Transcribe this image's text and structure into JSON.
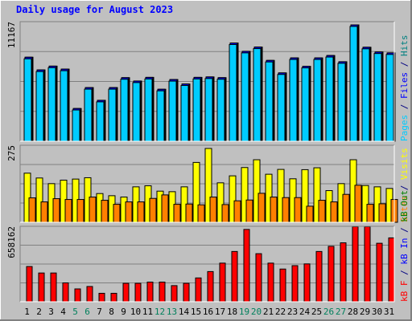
{
  "chart_data": {
    "type": "bar",
    "title": "Daily usage for August 2023",
    "categories": [
      "1",
      "2",
      "3",
      "4",
      "5",
      "6",
      "7",
      "8",
      "9",
      "10",
      "11",
      "12",
      "13",
      "14",
      "15",
      "16",
      "17",
      "18",
      "19",
      "20",
      "21",
      "22",
      "23",
      "24",
      "25",
      "26",
      "27",
      "28",
      "29",
      "30",
      "31"
    ],
    "weekend_days": [
      "5",
      "6",
      "12",
      "13",
      "19",
      "20",
      "26",
      "27"
    ],
    "panels": [
      {
        "name": "hits",
        "ymax": 11167,
        "ymax_label": "11167",
        "legend": [
          {
            "text": "Pages",
            "color": "#00ccff"
          },
          {
            "text": " / ",
            "color": "#000080"
          },
          {
            "text": "Files",
            "color": "#0000ff"
          },
          {
            "text": " / ",
            "color": "#000080"
          },
          {
            "text": "Hits",
            "color": "#008080"
          }
        ],
        "series": [
          {
            "name": "Hits",
            "color": "#00805c",
            "values": [
              8067,
              6847,
              7210,
              6925,
              3144,
              5150,
              3930,
              5150,
              6102,
              5780,
              6131,
              4990,
              5923,
              5496,
              6131,
              6173,
              6102,
              9430,
              8630,
              9039,
              7760,
              6560,
              8000,
              7190,
              8000,
              8230,
              7630,
              11167,
              9022,
              8568,
              8480
            ]
          },
          {
            "name": "Files",
            "color": "#0000ff",
            "values": [
              8067,
              6847,
              7210,
              6925,
              3144,
              5150,
              3930,
              5150,
              6102,
              5780,
              6131,
              4990,
              5923,
              5496,
              6131,
              6173,
              6102,
              9430,
              8630,
              9039,
              7760,
              6560,
              8000,
              7190,
              8000,
              8230,
              7630,
              11167,
              9022,
              8568,
              8480
            ]
          },
          {
            "name": "Pages",
            "color": "#00ccff",
            "values": [
              7910,
              6690,
              7060,
              6770,
              3000,
              5000,
              3780,
              5000,
              5950,
              5630,
              5980,
              4840,
              5770,
              5350,
              5980,
              6020,
              5950,
              9280,
              8480,
              8890,
              7610,
              6410,
              7850,
              7040,
              7850,
              8080,
              7480,
              11020,
              8870,
              8420,
              8330
            ]
          }
        ]
      },
      {
        "name": "visits",
        "ymax": 275,
        "ymax_label": "275",
        "legend": [
          {
            "text": "Sites",
            "color": "#ff8000"
          },
          {
            "text": " / ",
            "color": "#000080"
          },
          {
            "text": "Visits",
            "color": "#ffff00"
          }
        ],
        "series": [
          {
            "name": "Visits",
            "color": "#ffff00",
            "values": [
              183,
              165,
              144,
              157,
              161,
              166,
              107,
              99,
              94,
              132,
              136,
              116,
              114,
              132,
              223,
              275,
              147,
              173,
              204,
              233,
              179,
              197,
              162,
              196,
              203,
              118,
              144,
              233,
              137,
              132,
              126
            ]
          },
          {
            "name": "Sites",
            "color": "#ff8000",
            "values": [
              91,
              76,
              88,
              85,
              85,
              94,
              82,
              67,
              76,
              76,
              89,
              102,
              67,
              68,
              65,
              94,
              66,
              80,
              83,
              108,
              94,
              92,
              92,
              60,
              82,
              76,
              104,
              138,
              67,
              69,
              85
            ]
          }
        ]
      },
      {
        "name": "kbytes",
        "ymax": 658162,
        "ymax_label": "658162",
        "legend": [
          {
            "text": "kB F",
            "color": "#ff0000"
          },
          {
            "text": " / ",
            "color": "#000080"
          },
          {
            "text": "kB In",
            "color": "#0000ff"
          },
          {
            "text": " / ",
            "color": "#000080"
          },
          {
            "text": "kB Out",
            "color": "#008000"
          }
        ],
        "series": [
          {
            "name": "kB F",
            "color": "#ff0000",
            "values": [
              321000,
              262000,
              262000,
              172000,
              117000,
              139000,
              77000,
              77000,
              168000,
              168000,
              179000,
              179000,
              147000,
              168000,
              217000,
              275000,
              352000,
              458000,
              659000,
              438000,
              352000,
              298000,
              329000,
              345000,
              458000,
              505000,
              537000,
              687000,
              687000,
              533000,
              582000
            ]
          }
        ]
      }
    ],
    "label_colors": {
      "weekday": "#000000",
      "weekend": "#00805c",
      "title": "#0000ff"
    },
    "theme": {
      "page_bg": "#c0c0c0",
      "plot_bg": "#c0c0c0",
      "gridline": "#808080"
    }
  }
}
